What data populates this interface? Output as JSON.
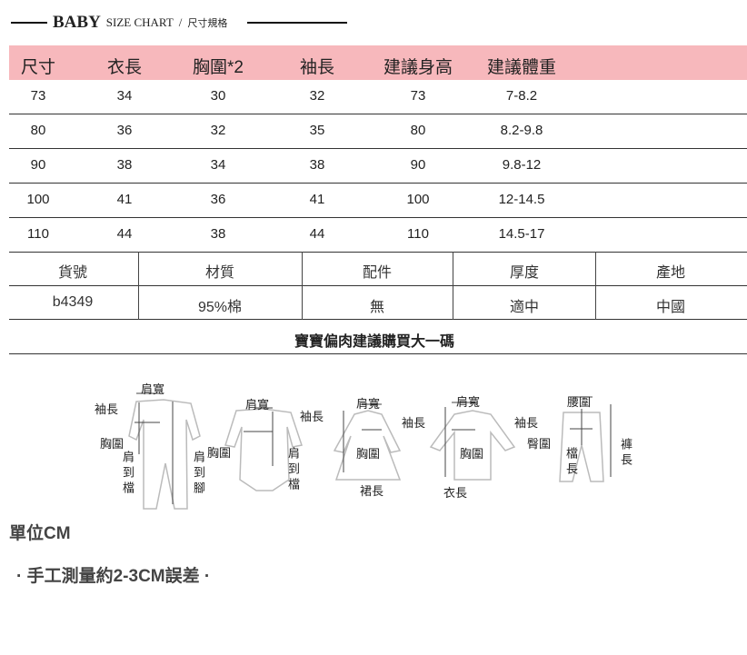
{
  "header": {
    "brand": "BABY",
    "subtitle": "SIZE CHART",
    "separator": "/",
    "subtitle_cn": "尺寸規格"
  },
  "size_table": {
    "columns": [
      "尺寸",
      "衣長",
      "胸圍*2",
      "袖長",
      "建議身高",
      "建議體重"
    ],
    "rows": [
      [
        "73",
        "34",
        "30",
        "32",
        "73",
        "7-8.2"
      ],
      [
        "80",
        "36",
        "32",
        "35",
        "80",
        "8.2-9.8"
      ],
      [
        "90",
        "38",
        "34",
        "38",
        "90",
        "9.8-12"
      ],
      [
        "100",
        "41",
        "36",
        "41",
        "100",
        "12-14.5"
      ],
      [
        "110",
        "44",
        "38",
        "44",
        "110",
        "14.5-17"
      ]
    ],
    "header_color": "#f7b8bc"
  },
  "info_table": {
    "columns": [
      "貨號",
      "材質",
      "配件",
      "厚度",
      "產地"
    ],
    "values": [
      "b4349",
      "95%棉",
      "無",
      "適中",
      "中國"
    ]
  },
  "advice": "寶寶偏肉建議購買大一碼",
  "diagram": {
    "romper": {
      "shoulder": "肩寬",
      "sleeve": "袖長",
      "chest": "胸圍",
      "shoulder_to_crotch": "肩到檔",
      "shoulder_to_foot": "肩到腳"
    },
    "bodysuit": {
      "shoulder": "肩寬",
      "sleeve": "袖長",
      "chest": "胸圍",
      "shoulder_to_crotch": "肩到檔"
    },
    "dress": {
      "shoulder": "肩寬",
      "sleeve": "袖長",
      "chest": "胸圍",
      "skirt_length": "裙長"
    },
    "top": {
      "shoulder": "肩寬",
      "sleeve": "袖長",
      "chest": "胸圍",
      "length": "衣長"
    },
    "pants": {
      "waist": "腰圍",
      "hip": "臀圍",
      "rise": "檔長",
      "pants_length": "褲長"
    }
  },
  "notes": {
    "unit": "單位CM",
    "error": "· 手工測量約2-3CM誤差 ·"
  }
}
